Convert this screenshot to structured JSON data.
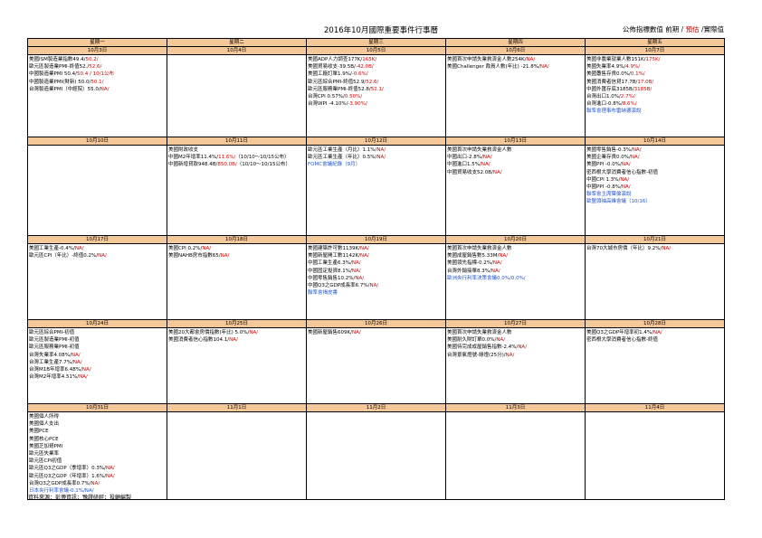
{
  "title": "2016年10月國際重要事件行事曆",
  "legend": {
    "part1": "公佈指標數值 前期 / ",
    "part2": "預估",
    "part3": " /實際值"
  },
  "weekdays": [
    "星期一",
    "星期二",
    "星期三",
    "星期四",
    "星期五"
  ],
  "weeks": [
    {
      "dates": [
        "10月3日",
        "10月4日",
        "10月5日",
        "10月6日",
        "10月7日"
      ],
      "cells": [
        [
          {
            "t": "美國ISM製造業指數49.4/",
            "v": "50.2/"
          },
          {
            "t": "歐元區製造業PMI-終值52./",
            "v": "52.6/"
          },
          {
            "t": "中國製造業PMI 50.4/",
            "v": "50.4 / 10/1公布"
          },
          {
            "t": "中國製造業PMI(財新) 50.0/",
            "v": "50.1/"
          },
          {
            "t": "台灣製造業PMI（中經院）55.0/",
            "v": "NA/"
          }
        ],
        [],
        [
          {
            "t": "美國ADP人力調查177K/",
            "v": "165K/"
          },
          {
            "t": "美國貿易收支-39.5B/",
            "v": "-42.0B/"
          },
          {
            "t": "美國工廠訂單1.9%/",
            "v": "-0.6%/"
          },
          {
            "t": "歐元區綜合PMI-終值52.9/",
            "v": "52.6/"
          },
          {
            "t": "歐元區服務業PMI-終值52.8/",
            "v": "52.1/"
          },
          {
            "t": "台灣CPI 0.57%/",
            "v": "0.50%/"
          },
          {
            "t": "台灣WPI -4.10%/",
            "v": "-3.90%/"
          }
        ],
        [
          {
            "t": "美國首次申請失業救濟金人數254K/",
            "v": "NA/"
          },
          {
            "t": "美國Challenger 裁員人數(年比) -21.8%/",
            "v": "NA/"
          }
        ],
        [
          {
            "t": "美國非農業就業人數151K/",
            "v": "175K/"
          },
          {
            "t": "美國失業率4.9%/",
            "v": "4.9%/"
          },
          {
            "t": "美國躉售存貨0.0%/",
            "v": "0.1%/"
          },
          {
            "t": "美國消費者信貸17.7B/",
            "v": "17.0B/"
          },
          {
            "t": "中國外匯存底3185B/",
            "v": "3185B/"
          },
          {
            "t": "台灣出口1.0%/",
            "v": "2.7%/"
          },
          {
            "t": "台灣進口-0.8%/",
            "v": "8.6%/"
          },
          {
            "t": "聯準會理事布雷納德演說",
            "blue": true
          }
        ]
      ]
    },
    {
      "dates": [
        "10月10日",
        "10月11日",
        "10月12日",
        "10月13日",
        "10月14日"
      ],
      "cells": [
        [],
        [
          {
            "t": "美國財政收支",
            "v": ""
          },
          {
            "t": "中國M2年增率11.4%/",
            "v": "11.6%/",
            "s": "（10/10～10/15公布）",
            "wrap": true
          },
          {
            "t": "中國新增貸款948.4B/",
            "v": "850.0B/",
            "s": "（10/10～10/15公布）",
            "wrap": true
          }
        ],
        [
          {
            "t": "歐元區工業生產（月比）1.1%/",
            "v": "NA/"
          },
          {
            "t": "歐元區工業生產（年比）0.5%/",
            "v": "NA/"
          },
          {
            "t": "FOMC會議紀錄（9月）",
            "blue": true
          }
        ],
        [
          {
            "t": "美國首次申請失業救濟金人數",
            "v": ""
          },
          {
            "t": "中國出口-2.8%/",
            "v": "NA/"
          },
          {
            "t": "中國進口1.5%/",
            "v": "NA/"
          },
          {
            "t": "中國貿易收支52.0B/",
            "v": "NA/"
          }
        ],
        [
          {
            "t": "美國零售銷售-0.3%/",
            "v": "NA/"
          },
          {
            "t": "美國企業存貨0.0%/",
            "v": "NA/"
          },
          {
            "t": "美國PPI -0.0%/",
            "v": "NA/"
          },
          {
            "t": "密西根大學消費者信心指數-初值",
            "v": ""
          },
          {
            "t": "中國CPI 1.3%/",
            "v": "NA/"
          },
          {
            "t": "中國PPI -0.8%/",
            "v": "NA/"
          },
          {
            "t": "聯準會主席葉倫演說",
            "blue": true
          },
          {
            "t": "歐盟領袖高峰會議（10/16）",
            "blue": true
          }
        ]
      ]
    },
    {
      "dates": [
        "10月17日",
        "10月18日",
        "10月19日",
        "10月20日",
        "10月21日"
      ],
      "cells": [
        [
          {
            "t": "美國工業生產-0.4%/",
            "v": "NA/"
          },
          {
            "t": "歐元區CPI（年比）-終值0.2%/",
            "v": "NA/"
          }
        ],
        [
          {
            "t": "美國CPI 0.2%/",
            "v": "NA/"
          },
          {
            "t": "美國NAHB房市指數65/",
            "v": "NA/"
          }
        ],
        [
          {
            "t": "美國建築許可數1139K/",
            "v": "NA/"
          },
          {
            "t": "美國新屋開工數1142K/",
            "v": "NA/"
          },
          {
            "t": "中國工業生產6.3%/",
            "v": "NA/"
          },
          {
            "t": "中國固定投資8.1%/",
            "v": "NA/"
          },
          {
            "t": "中國零售銷售10.2%/",
            "v": "NA/"
          },
          {
            "t": "中國Q3之GDP成長率6.7%/",
            "v": "NA/"
          },
          {
            "t": "聯準會褐皮書",
            "blue": true
          }
        ],
        [
          {
            "t": "美國首次申請失業救濟金人數",
            "v": ""
          },
          {
            "t": "美國成屋銷售數5.33M/",
            "v": "NA/"
          },
          {
            "t": "美國領先指標-0.2%/",
            "v": "NA/"
          },
          {
            "t": "台灣外銷接單8.3%/",
            "v": "NA/"
          },
          {
            "t": "歐洲央行利率決策會議0.0%/0.0%/",
            "blue": true
          }
        ],
        [
          {
            "t": "台灣70大城市房價（年比）9.2%/",
            "v": "NA/"
          }
        ]
      ]
    },
    {
      "dates": [
        "10月24日",
        "10月25日",
        "10月26日",
        "10月27日",
        "10月28日"
      ],
      "cells": [
        [
          {
            "t": "歐元區綜合PMI-初值",
            "v": ""
          },
          {
            "t": "歐元區製造業PMI-初值",
            "v": ""
          },
          {
            "t": "歐元區服務業PMI-初值",
            "v": ""
          },
          {
            "t": "台灣失業率4.08%/",
            "v": "NA/"
          },
          {
            "t": "台灣工業生產7.7%/",
            "v": "NA/"
          },
          {
            "t": "台灣M1B年增率6.48%/",
            "v": "NA/"
          },
          {
            "t": "台灣M2年增率4.51%/",
            "v": "NA/"
          }
        ],
        [
          {
            "t": "美國20大都會房價指數(年比) 5.0%/",
            "v": "NA/"
          },
          {
            "t": "美國消費者信心指數104.1/",
            "v": "NA/"
          }
        ],
        [
          {
            "t": "美國新屋銷售609K/",
            "v": "NA/"
          }
        ],
        [
          {
            "t": "美國首次申請失業救濟金人數",
            "v": ""
          },
          {
            "t": "美國耐久財訂單0.0%/",
            "v": "NA/"
          },
          {
            "t": "美國待完成成屋銷售指數-2.4%/",
            "v": "NA/"
          },
          {
            "t": "台灣景氣燈號-綠燈(25分)/",
            "v": "NA/"
          }
        ],
        [
          {
            "t": "美國Q3之GDP年增率初1.4%/",
            "v": "NA/"
          },
          {
            "t": "密西根大學消費者信心指數-終值",
            "v": ""
          }
        ]
      ]
    },
    {
      "dates": [
        "10月31日",
        "11月1日",
        "11月2日",
        "11月3日",
        "11月4日"
      ],
      "cells": [
        [
          {
            "t": "美國個人所得",
            "v": ""
          },
          {
            "t": "美國個人支出",
            "v": ""
          },
          {
            "t": "美國PCE",
            "v": ""
          },
          {
            "t": "美國核心PCE",
            "v": ""
          },
          {
            "t": "美國芝加哥PMI",
            "v": ""
          },
          {
            "t": "歐元區失業率",
            "v": ""
          },
          {
            "t": "歐元區CPI初值",
            "v": ""
          },
          {
            "t": "歐元區Q3之GDP（季增率）0.3%/",
            "v": "NA/"
          },
          {
            "t": "歐元區Q3之GDP（年增率）1.6%/",
            "v": "NA/"
          },
          {
            "t": "台灣Q3之GDP成長率0.7%/",
            "v": "NA/"
          },
          {
            "t": "日本央行利率會議-0.1%/NA/",
            "blue": true
          }
        ],
        [],
        [],
        [],
        []
      ]
    }
  ],
  "source": "資料來源：彭博資訊；豫證研經；投顧編製"
}
